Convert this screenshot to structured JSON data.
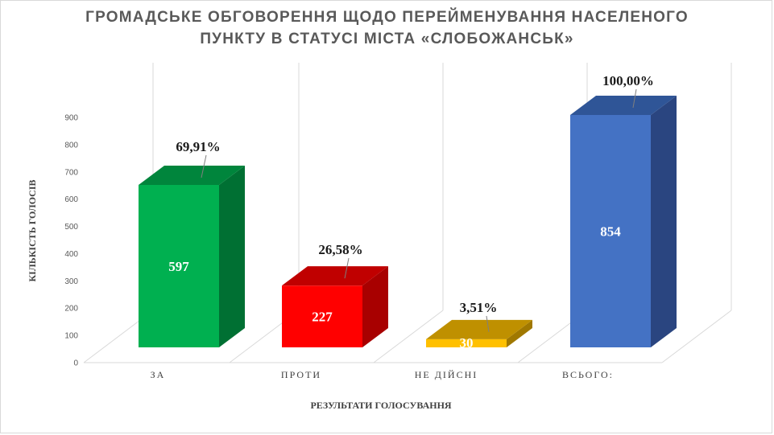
{
  "chart_data": {
    "type": "bar",
    "title_lines": [
      "ГРОМАДСЬКЕ ОБГОВОРЕННЯ ЩОДО ПЕРЕЙМЕНУВАННЯ НАСЕЛЕНОГО",
      "ПУНКТУ В СТАТУСІ МІСТА «СЛОБОЖАНСЬК»"
    ],
    "xlabel": "РЕЗУЛЬТАТИ  ГОЛОСУВАННЯ",
    "ylabel": "КІЛЬКІСТЬ  ГОЛОСІВ",
    "ylim": [
      0,
      900
    ],
    "yticks": [
      "0",
      "100",
      "200",
      "300",
      "400",
      "500",
      "600",
      "700",
      "800",
      "900"
    ],
    "categories": [
      "ЗА",
      "ПРОТИ",
      "НЕ ДІЙСНІ",
      "ВСЬОГО:"
    ],
    "values": [
      597,
      227,
      30,
      854
    ],
    "value_labels": [
      "597",
      "227",
      "30",
      "854"
    ],
    "percent_labels": [
      "69,91%",
      "26,58%",
      "3,51%",
      "100,00%"
    ],
    "colors": [
      {
        "front": "#00b050",
        "side": "#007033",
        "top": "#00853c"
      },
      {
        "front": "#ff0000",
        "side": "#a80000",
        "top": "#c00000"
      },
      {
        "front": "#ffc000",
        "side": "#a07800",
        "top": "#bf9000"
      },
      {
        "front": "#4472c4",
        "side": "#2a4580",
        "top": "#2f5597"
      }
    ],
    "style": "3d-column",
    "grid": true,
    "legend": "none"
  }
}
